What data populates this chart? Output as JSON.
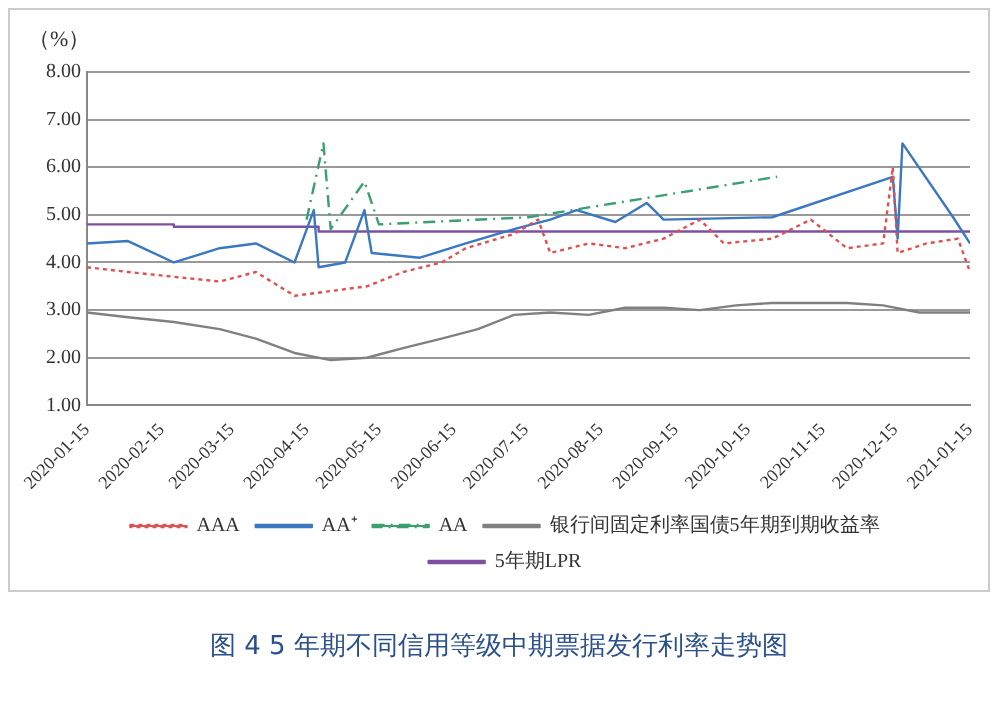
{
  "chart_data": {
    "type": "line",
    "title": "图 4 5 年期不同信用等级中期票据发行利率走势图",
    "ylabel": "（%）",
    "ylim": [
      1,
      8
    ],
    "yticks": [
      {
        "value": 1,
        "label": "1.00"
      },
      {
        "value": 2,
        "label": "2.00"
      },
      {
        "value": 3,
        "label": "3.00"
      },
      {
        "value": 4,
        "label": "4.00"
      },
      {
        "value": 5,
        "label": "5.00"
      },
      {
        "value": 6,
        "label": "6.00"
      },
      {
        "value": 7,
        "label": "7.00"
      },
      {
        "value": 8,
        "label": "8.00"
      }
    ],
    "xlim": [
      "2020-01-15",
      "2021-01-15"
    ],
    "xticks": [
      "2020-01-15",
      "2020-02-15",
      "2020-03-15",
      "2020-04-15",
      "2020-05-15",
      "2020-06-15",
      "2020-07-15",
      "2020-08-15",
      "2020-09-15",
      "2020-10-15",
      "2020-11-15",
      "2020-12-15",
      "2021-01-15"
    ],
    "grid": "y",
    "legend": "bottom",
    "marker": "none",
    "series": [
      {
        "name": "AAA",
        "color": "#e05050",
        "line_style": "dotted",
        "x": [
          "2020-01-15",
          "2020-02-01",
          "2020-02-20",
          "2020-03-10",
          "2020-03-25",
          "2020-04-10",
          "2020-04-25",
          "2020-05-10",
          "2020-05-25",
          "2020-06-10",
          "2020-06-20",
          "2020-07-10",
          "2020-07-20",
          "2020-07-25",
          "2020-08-10",
          "2020-08-25",
          "2020-09-10",
          "2020-09-25",
          "2020-10-05",
          "2020-10-25",
          "2020-11-10",
          "2020-11-25",
          "2020-12-10",
          "2020-12-14",
          "2020-12-16",
          "2020-12-28",
          "2021-01-10",
          "2021-01-15"
        ],
        "values": [
          3.9,
          3.8,
          3.7,
          3.6,
          3.8,
          3.3,
          3.4,
          3.5,
          3.8,
          4.0,
          4.3,
          4.6,
          4.9,
          4.2,
          4.4,
          4.3,
          4.5,
          4.9,
          4.4,
          4.5,
          4.9,
          4.3,
          4.4,
          6.0,
          4.2,
          4.4,
          4.5,
          3.8
        ]
      },
      {
        "name": "AA⁺",
        "color": "#3a78c0",
        "line_style": "solid",
        "x": [
          "2020-01-15",
          "2020-02-01",
          "2020-02-20",
          "2020-03-10",
          "2020-03-25",
          "2020-04-10",
          "2020-04-18",
          "2020-04-20",
          "2020-05-01",
          "2020-05-09",
          "2020-05-12",
          "2020-06-01",
          "2020-06-20",
          "2020-07-10",
          "2020-07-25",
          "2020-08-05",
          "2020-08-21",
          "2020-09-03",
          "2020-09-10",
          "2020-10-25",
          "2020-12-14",
          "2020-12-16",
          "2020-12-18",
          "2021-01-08",
          "2021-01-15"
        ],
        "values": [
          4.4,
          4.45,
          4.0,
          4.3,
          4.4,
          4.0,
          5.1,
          3.9,
          4.0,
          5.1,
          4.2,
          4.1,
          4.4,
          4.7,
          4.9,
          5.1,
          4.85,
          5.25,
          4.9,
          4.95,
          5.8,
          4.5,
          6.5,
          4.95,
          4.4
        ]
      },
      {
        "name": "AA",
        "color": "#3aa070",
        "line_style": "dashed",
        "x": [
          "2020-04-15",
          "2020-04-22",
          "2020-04-25",
          "2020-05-09",
          "2020-05-15",
          "2020-07-16",
          "2020-10-27"
        ],
        "values": [
          4.9,
          6.5,
          4.7,
          5.7,
          4.8,
          4.95,
          5.8
        ]
      },
      {
        "name": "银行间固定利率国债5年期到期收益率",
        "color": "#808080",
        "line_style": "solid",
        "x": [
          "2020-01-15",
          "2020-02-01",
          "2020-02-20",
          "2020-03-10",
          "2020-03-25",
          "2020-04-10",
          "2020-04-25",
          "2020-05-10",
          "2020-05-25",
          "2020-06-10",
          "2020-06-25",
          "2020-07-10",
          "2020-07-25",
          "2020-08-10",
          "2020-08-25",
          "2020-09-10",
          "2020-09-25",
          "2020-10-10",
          "2020-10-25",
          "2020-11-10",
          "2020-11-25",
          "2020-12-10",
          "2020-12-25",
          "2021-01-15"
        ],
        "values": [
          2.95,
          2.85,
          2.75,
          2.6,
          2.4,
          2.1,
          1.95,
          2.0,
          2.2,
          2.4,
          2.6,
          2.9,
          2.95,
          2.9,
          3.05,
          3.05,
          3.0,
          3.1,
          3.15,
          3.15,
          3.15,
          3.1,
          2.95,
          2.95
        ]
      },
      {
        "name": "5年期LPR",
        "color": "#8050a0",
        "line_style": "solid",
        "x": [
          "2020-01-15",
          "2020-02-20",
          "2020-02-20",
          "2020-04-20",
          "2020-04-20",
          "2021-01-15"
        ],
        "values": [
          4.8,
          4.8,
          4.75,
          4.75,
          4.65,
          4.65
        ]
      }
    ]
  }
}
